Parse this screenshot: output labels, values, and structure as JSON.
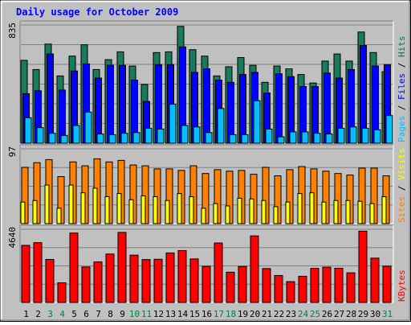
{
  "chart_data": {
    "type": "bar",
    "title": "Daily usage for October 2009",
    "categories": [
      "1",
      "2",
      "3",
      "4",
      "5",
      "6",
      "7",
      "8",
      "9",
      "10",
      "11",
      "12",
      "13",
      "14",
      "15",
      "16",
      "17",
      "18",
      "19",
      "20",
      "21",
      "22",
      "23",
      "24",
      "25",
      "26",
      "27",
      "28",
      "29",
      "30",
      "31"
    ],
    "weekend_days": [
      "3",
      "4",
      "10",
      "11",
      "17",
      "18",
      "24",
      "25",
      "31"
    ],
    "panels": [
      {
        "name": "hits-files-pages",
        "max_label": "835",
        "ylim": [
          0,
          835
        ],
        "legend": [
          {
            "label": "Pages",
            "color": "#00c0ff"
          },
          {
            "label": "/",
            "color": "#000000"
          },
          {
            "label": "Files",
            "color": "#0000ff"
          },
          {
            "label": "/",
            "color": "#000000"
          },
          {
            "label": "Hits",
            "color": "#008040"
          }
        ],
        "series": [
          {
            "name": "Hits",
            "color": "#1a7a5c",
            "values": [
              585,
              520,
              700,
              475,
              615,
              695,
              520,
              590,
              645,
              545,
              415,
              640,
              645,
              825,
              660,
              615,
              475,
              540,
              605,
              550,
              430,
              545,
              525,
              485,
              425,
              580,
              630,
              580,
              785,
              640,
              505
            ]
          },
          {
            "name": "Files",
            "color": "#0000ff",
            "values": [
              350,
              370,
              630,
              375,
              510,
              560,
              460,
              550,
              550,
              445,
              295,
              555,
              555,
              680,
              500,
              525,
              445,
              430,
              485,
              500,
              355,
              490,
              470,
              400,
              400,
              495,
              460,
              520,
              690,
              545,
              555
            ]
          },
          {
            "name": "Pages",
            "color": "#00c0ff",
            "values": [
              180,
              110,
              70,
              55,
              125,
              220,
              65,
              60,
              70,
              75,
              105,
              100,
              275,
              125,
              115,
              75,
              245,
              60,
              60,
              300,
              100,
              45,
              80,
              80,
              70,
              65,
              105,
              115,
              105,
              95,
              195
            ]
          }
        ]
      },
      {
        "name": "visits-sites",
        "max_label": "97",
        "ylim": [
          0,
          97
        ],
        "legend": [
          {
            "label": "Sites",
            "color": "#ff8000"
          },
          {
            "label": "/",
            "color": "#000000"
          },
          {
            "label": "Visits",
            "color": "#ffff00"
          }
        ],
        "series": [
          {
            "name": "Visits",
            "color": "#ff8000",
            "values": [
              73,
              79,
              83,
              61,
              80,
              75,
              84,
              80,
              82,
              76,
              75,
              71,
              71,
              69,
              75,
              65,
              70,
              68,
              69,
              64,
              73,
              62,
              70,
              74,
              71,
              68,
              65,
              63,
              72,
              72,
              62
            ]
          },
          {
            "name": "Sites",
            "color": "#ffff00",
            "values": [
              28,
              30,
              50,
              20,
              50,
              40,
              46,
              35,
              39,
              31,
              36,
              35,
              30,
              39,
              35,
              20,
              26,
              23,
              33,
              32,
              30,
              22,
              28,
              39,
              40,
              28,
              30,
              30,
              29,
              26,
              35
            ]
          }
        ]
      },
      {
        "name": "kbytes",
        "max_label": "4640",
        "ylim": [
          0,
          4640
        ],
        "legend": [
          {
            "label": "KBytes",
            "color": "#ff0000"
          }
        ],
        "series": [
          {
            "name": "KBytes",
            "color": "#ff0000",
            "values": [
              3620,
              3790,
              2730,
              1250,
              4400,
              2250,
              2570,
              3070,
              4440,
              3000,
              2720,
              2740,
              3140,
              3290,
              2760,
              2290,
              3770,
              1920,
              2280,
              4220,
              2150,
              1710,
              1320,
              1660,
              2160,
              2240,
              2170,
              1880,
              4520,
              2810,
              2300
            ]
          }
        ]
      }
    ]
  }
}
